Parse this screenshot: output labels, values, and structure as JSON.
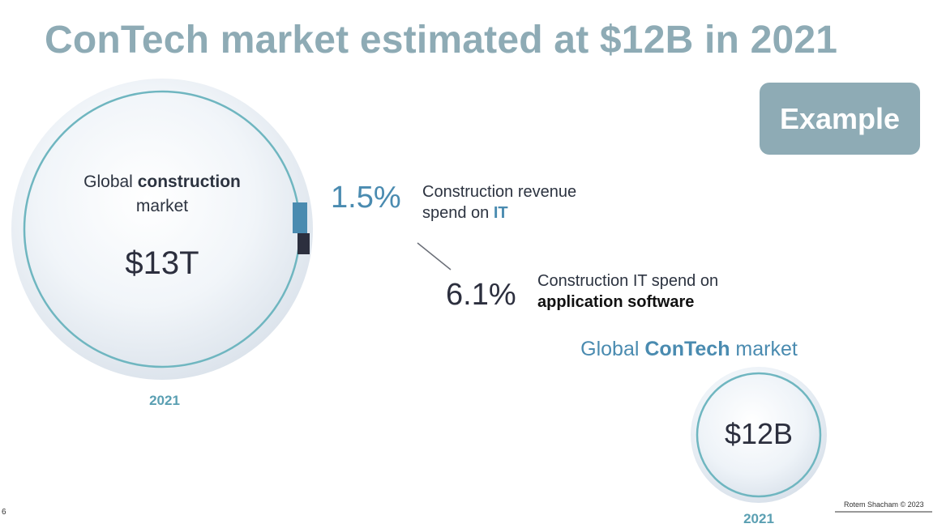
{
  "title": "ConTech market estimated at $12B in 2021",
  "badge": "Example",
  "big_circle": {
    "label_pre": "Global ",
    "label_bold": "construction",
    "label_line2": "market",
    "value": "$13T",
    "year": "2021"
  },
  "step1": {
    "percent": "1.5%",
    "line1": "Construction revenue",
    "line2_pre": "spend on ",
    "line2_bold": "IT"
  },
  "step2": {
    "percent": "6.1%",
    "line1": "Construction IT spend on",
    "line2_bold": "application software"
  },
  "small_circle": {
    "label_pre": "Global ",
    "label_bold": "ConTech",
    "label_post": " market",
    "value": "$12B",
    "year": "2021"
  },
  "footer": {
    "page_number": "6",
    "copyright": "Rotem Shacham © 2023"
  },
  "colors": {
    "title": "#8eabb5",
    "accent_blue": "#4a8bb0",
    "ring": "#6fb6c0",
    "dark_segment": "#2c2f3e"
  }
}
